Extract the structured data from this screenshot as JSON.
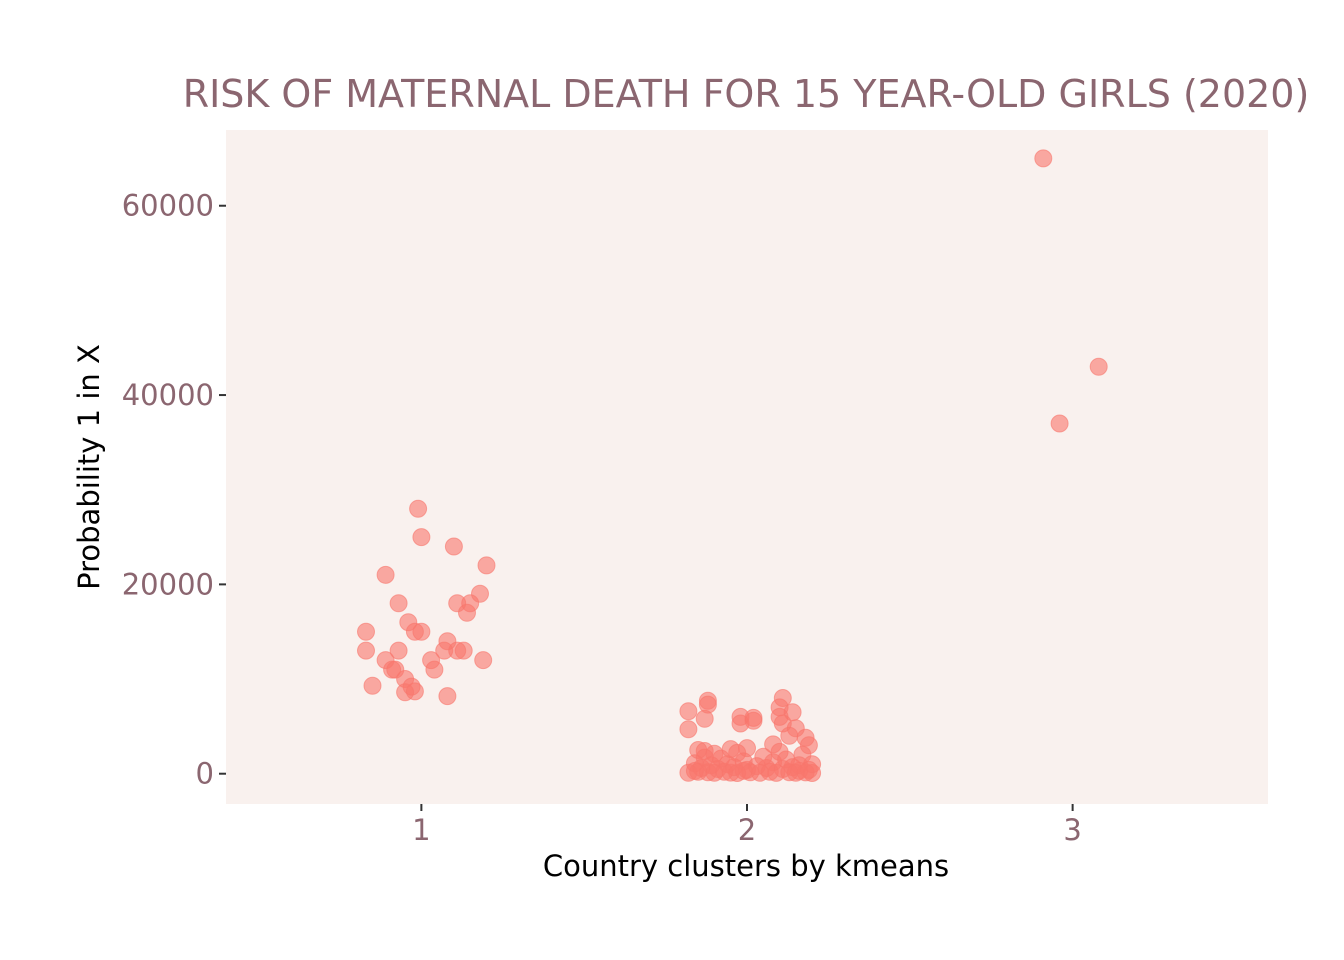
{
  "chart_data": {
    "type": "scatter",
    "title": "RISK OF MATERNAL DEATH FOR 15 YEAR-OLD GIRLS (2020)",
    "xlabel": "Country clusters by kmeans",
    "ylabel": "Probability 1 in X",
    "xlim": [
      0.4,
      3.6
    ],
    "ylim": [
      -3200,
      68000
    ],
    "x_ticks": [
      1,
      2,
      3
    ],
    "x_tick_labels": [
      "1",
      "2",
      "3"
    ],
    "y_ticks": [
      0,
      20000,
      40000,
      60000
    ],
    "y_tick_labels": [
      "0",
      "20000",
      "40000",
      "60000"
    ],
    "grid": false,
    "legend": "none",
    "colors": {
      "panel": "#f9f1ee",
      "point": "#f8766d",
      "text": "#8b6670",
      "axis_title": "#000000",
      "tick": "#333333"
    },
    "series": [
      {
        "values": [
          {
            "x": 0.83,
            "y": 15000
          },
          {
            "x": 0.83,
            "y": 13000
          },
          {
            "x": 0.85,
            "y": 9300
          },
          {
            "x": 0.89,
            "y": 21000
          },
          {
            "x": 0.89,
            "y": 12000
          },
          {
            "x": 0.91,
            "y": 11000
          },
          {
            "x": 0.92,
            "y": 11000
          },
          {
            "x": 0.93,
            "y": 18000
          },
          {
            "x": 0.93,
            "y": 13000
          },
          {
            "x": 0.95,
            "y": 10000
          },
          {
            "x": 0.95,
            "y": 8600
          },
          {
            "x": 0.96,
            "y": 16000
          },
          {
            "x": 0.97,
            "y": 9200
          },
          {
            "x": 0.98,
            "y": 15000
          },
          {
            "x": 0.98,
            "y": 8700
          },
          {
            "x": 0.99,
            "y": 28000
          },
          {
            "x": 1.0,
            "y": 25000
          },
          {
            "x": 1.0,
            "y": 15000
          },
          {
            "x": 1.03,
            "y": 12000
          },
          {
            "x": 1.04,
            "y": 11000
          },
          {
            "x": 1.07,
            "y": 13000
          },
          {
            "x": 1.08,
            "y": 14000
          },
          {
            "x": 1.08,
            "y": 8200
          },
          {
            "x": 1.1,
            "y": 24000
          },
          {
            "x": 1.11,
            "y": 13000
          },
          {
            "x": 1.11,
            "y": 18000
          },
          {
            "x": 1.13,
            "y": 13000
          },
          {
            "x": 1.14,
            "y": 17000
          },
          {
            "x": 1.15,
            "y": 18000
          },
          {
            "x": 1.18,
            "y": 19000
          },
          {
            "x": 1.19,
            "y": 12000
          },
          {
            "x": 1.2,
            "y": 22000
          },
          {
            "x": 1.82,
            "y": 6600
          },
          {
            "x": 1.82,
            "y": 4700
          },
          {
            "x": 1.88,
            "y": 7700
          },
          {
            "x": 1.88,
            "y": 7300
          },
          {
            "x": 1.87,
            "y": 5800
          },
          {
            "x": 1.98,
            "y": 6000
          },
          {
            "x": 1.98,
            "y": 5300
          },
          {
            "x": 2.02,
            "y": 5900
          },
          {
            "x": 2.02,
            "y": 5600
          },
          {
            "x": 2.11,
            "y": 8000
          },
          {
            "x": 2.1,
            "y": 7000
          },
          {
            "x": 2.1,
            "y": 6000
          },
          {
            "x": 2.11,
            "y": 5300
          },
          {
            "x": 2.14,
            "y": 6500
          },
          {
            "x": 2.15,
            "y": 4800
          },
          {
            "x": 2.13,
            "y": 4000
          },
          {
            "x": 2.18,
            "y": 3800
          },
          {
            "x": 2.19,
            "y": 3000
          },
          {
            "x": 2.08,
            "y": 3100
          },
          {
            "x": 2.0,
            "y": 2700
          },
          {
            "x": 1.85,
            "y": 2500
          },
          {
            "x": 1.87,
            "y": 2400
          },
          {
            "x": 1.9,
            "y": 2100
          },
          {
            "x": 1.95,
            "y": 2600
          },
          {
            "x": 1.97,
            "y": 2200
          },
          {
            "x": 2.05,
            "y": 1800
          },
          {
            "x": 2.17,
            "y": 2000
          },
          {
            "x": 2.12,
            "y": 1500
          },
          {
            "x": 1.92,
            "y": 1600
          },
          {
            "x": 1.99,
            "y": 1300
          },
          {
            "x": 1.84,
            "y": 1100
          },
          {
            "x": 1.89,
            "y": 900
          },
          {
            "x": 1.94,
            "y": 1000
          },
          {
            "x": 2.03,
            "y": 800
          },
          {
            "x": 2.08,
            "y": 1200
          },
          {
            "x": 2.16,
            "y": 900
          },
          {
            "x": 2.2,
            "y": 1000
          },
          {
            "x": 1.86,
            "y": 600
          },
          {
            "x": 1.91,
            "y": 500
          },
          {
            "x": 1.96,
            "y": 700
          },
          {
            "x": 2.0,
            "y": 400
          },
          {
            "x": 2.06,
            "y": 600
          },
          {
            "x": 2.11,
            "y": 500
          },
          {
            "x": 2.14,
            "y": 700
          },
          {
            "x": 2.19,
            "y": 400
          },
          {
            "x": 1.82,
            "y": 100
          },
          {
            "x": 1.85,
            "y": 200
          },
          {
            "x": 1.88,
            "y": 150
          },
          {
            "x": 1.9,
            "y": 100
          },
          {
            "x": 1.93,
            "y": 200
          },
          {
            "x": 1.95,
            "y": 120
          },
          {
            "x": 1.97,
            "y": 80
          },
          {
            "x": 2.01,
            "y": 150
          },
          {
            "x": 2.04,
            "y": 100
          },
          {
            "x": 2.07,
            "y": 200
          },
          {
            "x": 2.09,
            "y": 90
          },
          {
            "x": 2.13,
            "y": 160
          },
          {
            "x": 2.15,
            "y": 110
          },
          {
            "x": 2.18,
            "y": 140
          },
          {
            "x": 2.2,
            "y": 70
          },
          {
            "x": 1.84,
            "y": 300
          },
          {
            "x": 1.99,
            "y": 300
          },
          {
            "x": 2.16,
            "y": 300
          },
          {
            "x": 1.87,
            "y": 1700
          },
          {
            "x": 2.1,
            "y": 2300
          },
          {
            "x": 2.91,
            "y": 65000
          },
          {
            "x": 3.08,
            "y": 43000
          },
          {
            "x": 2.96,
            "y": 37000
          }
        ]
      }
    ]
  }
}
